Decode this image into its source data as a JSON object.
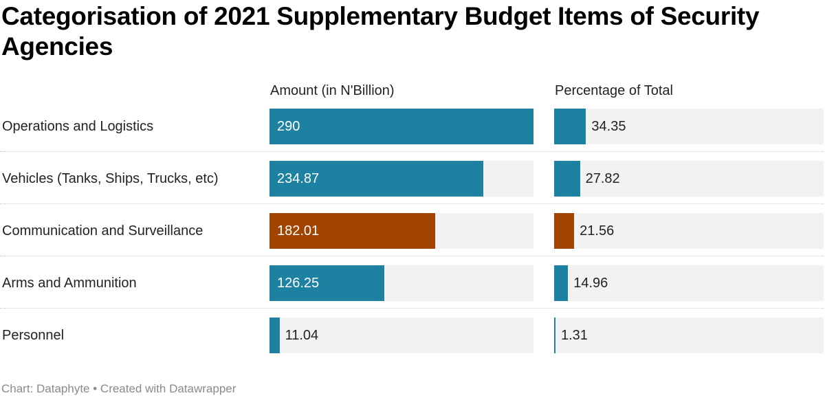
{
  "title": "Categorisation of 2021 Supplementary Budget Items of Security Agencies",
  "footer": "Chart: Dataphyte • Created with Datawrapper",
  "colors": {
    "default": "#1d81a2",
    "highlight": "#a04400",
    "track": "#f2f2f2"
  },
  "chart_data": {
    "type": "bar",
    "title": "Categorisation of 2021 Supplementary Budget Items of Security Agencies",
    "categories": [
      "Operations and Logistics",
      "Vehicles (Tanks, Ships, Trucks, etc)",
      "Communication and Surveillance",
      "Arms and Ammunition",
      "Personnel"
    ],
    "series": [
      {
        "name": "Amount (in N'Billion)",
        "values": [
          290,
          234.87,
          182.01,
          126.25,
          11.04
        ],
        "labels": [
          "290",
          "234.87",
          "182.01",
          "126.25",
          "11.04"
        ]
      },
      {
        "name": "Percentage of Total",
        "values": [
          34.35,
          27.82,
          21.56,
          14.96,
          1.31
        ],
        "labels": [
          "34.35",
          "27.82",
          "21.56",
          "14.96",
          "1.31"
        ]
      }
    ],
    "highlighted": [
      false,
      false,
      true,
      false,
      false
    ],
    "xlim": [
      0,
      290
    ],
    "xlabel": "",
    "ylabel": "",
    "grid": false,
    "legend": "none"
  }
}
